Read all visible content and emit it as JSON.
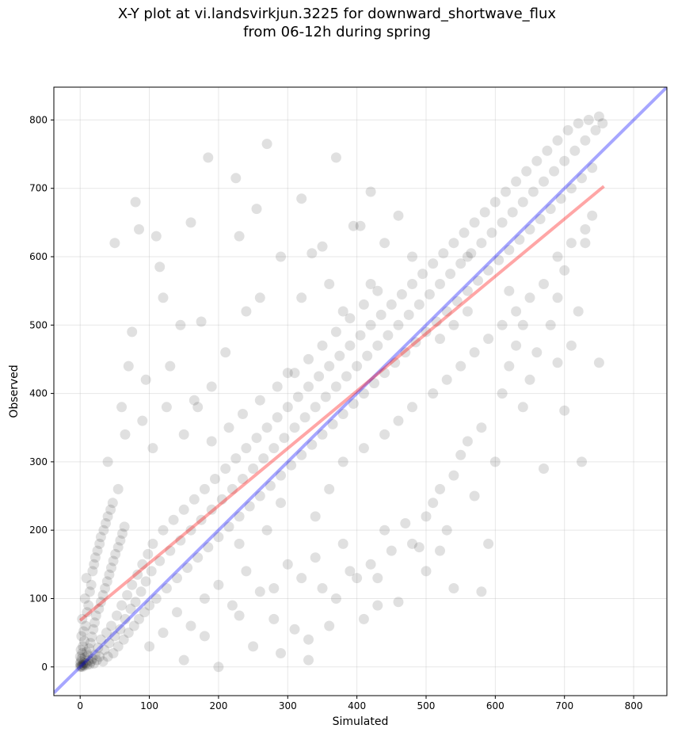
{
  "chart_data": {
    "type": "scatter",
    "title_lines": [
      "X-Y plot at vi.landsvirkjun.3225 for downward_shortwave_flux",
      "from 06-12h during spring"
    ],
    "xlabel": "Simulated",
    "ylabel": "Observed",
    "xlim": [
      -38,
      848
    ],
    "ylim": [
      -42,
      848
    ],
    "x_ticks": [
      0,
      100,
      200,
      300,
      400,
      500,
      600,
      700,
      800
    ],
    "y_ticks": [
      0,
      100,
      200,
      300,
      400,
      500,
      600,
      700,
      800
    ],
    "grid": true,
    "point_color": "#000000",
    "point_alpha": 0.12,
    "identity_line": {
      "color": "#0000ff",
      "alpha": 0.35,
      "from": [
        -38,
        -38
      ],
      "to": [
        848,
        848
      ]
    },
    "fit_line": {
      "color": "#ff0000",
      "alpha": 0.35,
      "from": [
        0,
        68
      ],
      "to": [
        757,
        703
      ]
    },
    "points": [
      [
        0,
        0
      ],
      [
        1,
        2
      ],
      [
        2,
        1
      ],
      [
        0,
        5
      ],
      [
        3,
        0
      ],
      [
        1,
        8
      ],
      [
        4,
        3
      ],
      [
        2,
        12
      ],
      [
        5,
        6
      ],
      [
        0,
        15
      ],
      [
        6,
        2
      ],
      [
        3,
        20
      ],
      [
        8,
        5
      ],
      [
        1,
        25
      ],
      [
        7,
        14
      ],
      [
        10,
        3
      ],
      [
        4,
        30
      ],
      [
        12,
        9
      ],
      [
        6,
        38
      ],
      [
        9,
        22
      ],
      [
        14,
        4
      ],
      [
        2,
        45
      ],
      [
        11,
        17
      ],
      [
        16,
        8
      ],
      [
        5,
        52
      ],
      [
        13,
        27
      ],
      [
        18,
        12
      ],
      [
        8,
        60
      ],
      [
        20,
        5
      ],
      [
        15,
        35
      ],
      [
        22,
        18
      ],
      [
        3,
        70
      ],
      [
        17,
        44
      ],
      [
        24,
        10
      ],
      [
        10,
        80
      ],
      [
        26,
        28
      ],
      [
        19,
        55
      ],
      [
        28,
        15
      ],
      [
        12,
        90
      ],
      [
        30,
        40
      ],
      [
        21,
        65
      ],
      [
        33,
        8
      ],
      [
        7,
        100
      ],
      [
        35,
        25
      ],
      [
        23,
        75
      ],
      [
        38,
        50
      ],
      [
        14,
        110
      ],
      [
        40,
        15
      ],
      [
        27,
        85
      ],
      [
        42,
        35
      ],
      [
        16,
        120
      ],
      [
        45,
        60
      ],
      [
        30,
        95
      ],
      [
        48,
        20
      ],
      [
        9,
        130
      ],
      [
        50,
        45
      ],
      [
        33,
        105
      ],
      [
        53,
        75
      ],
      [
        18,
        140
      ],
      [
        55,
        30
      ],
      [
        36,
        115
      ],
      [
        58,
        55
      ],
      [
        20,
        150
      ],
      [
        60,
        90
      ],
      [
        39,
        125
      ],
      [
        63,
        40
      ],
      [
        22,
        160
      ],
      [
        65,
        70
      ],
      [
        42,
        135
      ],
      [
        68,
        105
      ],
      [
        25,
        170
      ],
      [
        70,
        50
      ],
      [
        45,
        145
      ],
      [
        73,
        85
      ],
      [
        28,
        180
      ],
      [
        75,
        120
      ],
      [
        48,
        155
      ],
      [
        78,
        60
      ],
      [
        30,
        190
      ],
      [
        80,
        95
      ],
      [
        51,
        165
      ],
      [
        83,
        135
      ],
      [
        34,
        200
      ],
      [
        85,
        70
      ],
      [
        55,
        175
      ],
      [
        88,
        110
      ],
      [
        37,
        210
      ],
      [
        90,
        150
      ],
      [
        58,
        185
      ],
      [
        93,
        80
      ],
      [
        40,
        220
      ],
      [
        95,
        125
      ],
      [
        61,
        195
      ],
      [
        98,
        165
      ],
      [
        44,
        230
      ],
      [
        100,
        90
      ],
      [
        64,
        205
      ],
      [
        103,
        140
      ],
      [
        47,
        240
      ],
      [
        105,
        180
      ],
      [
        110,
        100
      ],
      [
        115,
        155
      ],
      [
        120,
        200
      ],
      [
        125,
        115
      ],
      [
        130,
        170
      ],
      [
        135,
        215
      ],
      [
        140,
        130
      ],
      [
        145,
        185
      ],
      [
        150,
        230
      ],
      [
        155,
        145
      ],
      [
        160,
        200
      ],
      [
        165,
        245
      ],
      [
        170,
        160
      ],
      [
        175,
        215
      ],
      [
        180,
        260
      ],
      [
        185,
        175
      ],
      [
        190,
        230
      ],
      [
        195,
        275
      ],
      [
        200,
        190
      ],
      [
        205,
        245
      ],
      [
        210,
        290
      ],
      [
        215,
        205
      ],
      [
        220,
        260
      ],
      [
        225,
        305
      ],
      [
        230,
        220
      ],
      [
        235,
        275
      ],
      [
        240,
        320
      ],
      [
        245,
        235
      ],
      [
        250,
        290
      ],
      [
        255,
        335
      ],
      [
        260,
        250
      ],
      [
        265,
        305
      ],
      [
        270,
        350
      ],
      [
        275,
        265
      ],
      [
        280,
        320
      ],
      [
        285,
        365
      ],
      [
        290,
        280
      ],
      [
        295,
        335
      ],
      [
        300,
        380
      ],
      [
        305,
        295
      ],
      [
        310,
        350
      ],
      [
        315,
        395
      ],
      [
        320,
        310
      ],
      [
        325,
        365
      ],
      [
        330,
        410
      ],
      [
        335,
        325
      ],
      [
        340,
        380
      ],
      [
        345,
        425
      ],
      [
        350,
        340
      ],
      [
        355,
        395
      ],
      [
        360,
        440
      ],
      [
        365,
        355
      ],
      [
        370,
        410
      ],
      [
        375,
        455
      ],
      [
        380,
        370
      ],
      [
        385,
        425
      ],
      [
        390,
        470
      ],
      [
        395,
        385
      ],
      [
        400,
        440
      ],
      [
        405,
        485
      ],
      [
        410,
        400
      ],
      [
        415,
        455
      ],
      [
        420,
        500
      ],
      [
        425,
        415
      ],
      [
        430,
        470
      ],
      [
        435,
        515
      ],
      [
        440,
        430
      ],
      [
        445,
        485
      ],
      [
        450,
        530
      ],
      [
        455,
        445
      ],
      [
        460,
        500
      ],
      [
        465,
        545
      ],
      [
        470,
        460
      ],
      [
        475,
        515
      ],
      [
        480,
        560
      ],
      [
        485,
        475
      ],
      [
        490,
        530
      ],
      [
        495,
        575
      ],
      [
        500,
        490
      ],
      [
        505,
        545
      ],
      [
        510,
        590
      ],
      [
        515,
        505
      ],
      [
        520,
        560
      ],
      [
        525,
        605
      ],
      [
        530,
        520
      ],
      [
        535,
        575
      ],
      [
        540,
        620
      ],
      [
        545,
        535
      ],
      [
        550,
        590
      ],
      [
        555,
        635
      ],
      [
        560,
        550
      ],
      [
        565,
        605
      ],
      [
        570,
        650
      ],
      [
        575,
        565
      ],
      [
        580,
        620
      ],
      [
        585,
        665
      ],
      [
        590,
        580
      ],
      [
        595,
        635
      ],
      [
        600,
        680
      ],
      [
        605,
        595
      ],
      [
        610,
        650
      ],
      [
        615,
        695
      ],
      [
        620,
        610
      ],
      [
        625,
        665
      ],
      [
        630,
        710
      ],
      [
        635,
        625
      ],
      [
        640,
        680
      ],
      [
        645,
        725
      ],
      [
        650,
        640
      ],
      [
        655,
        695
      ],
      [
        660,
        740
      ],
      [
        665,
        655
      ],
      [
        670,
        710
      ],
      [
        675,
        755
      ],
      [
        680,
        670
      ],
      [
        685,
        725
      ],
      [
        690,
        770
      ],
      [
        695,
        685
      ],
      [
        700,
        740
      ],
      [
        705,
        785
      ],
      [
        710,
        700
      ],
      [
        715,
        755
      ],
      [
        720,
        795
      ],
      [
        725,
        715
      ],
      [
        730,
        770
      ],
      [
        735,
        800
      ],
      [
        740,
        730
      ],
      [
        745,
        785
      ],
      [
        750,
        805
      ],
      [
        755,
        795
      ],
      [
        50,
        620
      ],
      [
        80,
        680
      ],
      [
        85,
        640
      ],
      [
        115,
        585
      ],
      [
        110,
        630
      ],
      [
        120,
        540
      ],
      [
        160,
        650
      ],
      [
        175,
        505
      ],
      [
        185,
        745
      ],
      [
        225,
        715
      ],
      [
        230,
        630
      ],
      [
        255,
        670
      ],
      [
        270,
        765
      ],
      [
        320,
        685
      ],
      [
        335,
        605
      ],
      [
        350,
        615
      ],
      [
        370,
        745
      ],
      [
        395,
        645
      ],
      [
        405,
        645
      ],
      [
        420,
        695
      ],
      [
        60,
        380
      ],
      [
        70,
        440
      ],
      [
        75,
        490
      ],
      [
        95,
        420
      ],
      [
        130,
        440
      ],
      [
        145,
        500
      ],
      [
        165,
        390
      ],
      [
        190,
        410
      ],
      [
        210,
        460
      ],
      [
        240,
        520
      ],
      [
        260,
        540
      ],
      [
        290,
        600
      ],
      [
        300,
        430
      ],
      [
        320,
        540
      ],
      [
        360,
        560
      ],
      [
        380,
        520
      ],
      [
        420,
        560
      ],
      [
        440,
        620
      ],
      [
        460,
        660
      ],
      [
        480,
        600
      ],
      [
        40,
        300
      ],
      [
        55,
        260
      ],
      [
        65,
        340
      ],
      [
        90,
        360
      ],
      [
        105,
        320
      ],
      [
        125,
        380
      ],
      [
        150,
        340
      ],
      [
        170,
        380
      ],
      [
        190,
        330
      ],
      [
        215,
        350
      ],
      [
        235,
        370
      ],
      [
        260,
        390
      ],
      [
        285,
        410
      ],
      [
        310,
        430
      ],
      [
        330,
        450
      ],
      [
        350,
        470
      ],
      [
        370,
        490
      ],
      [
        390,
        510
      ],
      [
        410,
        530
      ],
      [
        430,
        550
      ],
      [
        100,
        30
      ],
      [
        120,
        50
      ],
      [
        140,
        80
      ],
      [
        160,
        60
      ],
      [
        180,
        100
      ],
      [
        200,
        120
      ],
      [
        220,
        90
      ],
      [
        240,
        140
      ],
      [
        260,
        110
      ],
      [
        280,
        70
      ],
      [
        290,
        20
      ],
      [
        300,
        150
      ],
      [
        310,
        55
      ],
      [
        320,
        130
      ],
      [
        340,
        160
      ],
      [
        350,
        115
      ],
      [
        360,
        60
      ],
      [
        380,
        180
      ],
      [
        390,
        140
      ],
      [
        410,
        70
      ],
      [
        420,
        150
      ],
      [
        430,
        130
      ],
      [
        440,
        200
      ],
      [
        450,
        170
      ],
      [
        470,
        210
      ],
      [
        480,
        180
      ],
      [
        490,
        175
      ],
      [
        500,
        220
      ],
      [
        510,
        240
      ],
      [
        520,
        260
      ],
      [
        530,
        200
      ],
      [
        540,
        280
      ],
      [
        550,
        310
      ],
      [
        560,
        330
      ],
      [
        570,
        250
      ],
      [
        580,
        350
      ],
      [
        590,
        180
      ],
      [
        600,
        300
      ],
      [
        610,
        400
      ],
      [
        620,
        440
      ],
      [
        630,
        470
      ],
      [
        640,
        380
      ],
      [
        650,
        420
      ],
      [
        660,
        460
      ],
      [
        670,
        290
      ],
      [
        680,
        500
      ],
      [
        690,
        540
      ],
      [
        700,
        580
      ],
      [
        710,
        470
      ],
      [
        720,
        520
      ],
      [
        725,
        300
      ],
      [
        730,
        620
      ],
      [
        740,
        660
      ],
      [
        750,
        445
      ],
      [
        580,
        110
      ],
      [
        700,
        375
      ],
      [
        560,
        600
      ],
      [
        620,
        550
      ],
      [
        640,
        500
      ],
      [
        690,
        445
      ],
      [
        200,
        0
      ],
      [
        250,
        30
      ],
      [
        330,
        10
      ],
      [
        430,
        90
      ],
      [
        500,
        140
      ],
      [
        150,
        10
      ],
      [
        180,
        45
      ],
      [
        230,
        75
      ],
      [
        280,
        115
      ],
      [
        330,
        40
      ],
      [
        370,
        100
      ],
      [
        400,
        130
      ],
      [
        460,
        95
      ],
      [
        520,
        170
      ],
      [
        540,
        115
      ],
      [
        230,
        180
      ],
      [
        270,
        200
      ],
      [
        290,
        240
      ],
      [
        340,
        220
      ],
      [
        360,
        260
      ],
      [
        380,
        300
      ],
      [
        410,
        320
      ],
      [
        440,
        340
      ],
      [
        460,
        360
      ],
      [
        480,
        380
      ],
      [
        510,
        400
      ],
      [
        530,
        420
      ],
      [
        550,
        440
      ],
      [
        570,
        460
      ],
      [
        590,
        480
      ],
      [
        610,
        500
      ],
      [
        630,
        520
      ],
      [
        650,
        540
      ],
      [
        670,
        560
      ],
      [
        690,
        600
      ],
      [
        710,
        620
      ],
      [
        730,
        640
      ],
      [
        520,
        480
      ],
      [
        540,
        500
      ],
      [
        560,
        520
      ]
    ]
  }
}
